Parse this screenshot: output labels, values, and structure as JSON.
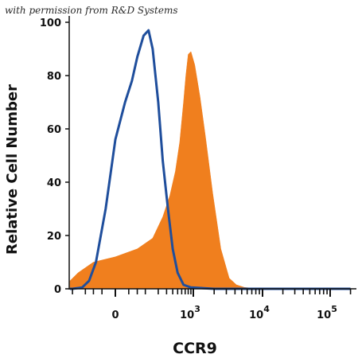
{
  "watermark": "with permission from R&D Systems",
  "chart_data": {
    "type": "area",
    "xlabel": "CCR9",
    "ylabel": "Relative Cell Number",
    "x_scale": "biexponential (logicle)",
    "ylim": [
      0,
      100
    ],
    "y_ticks": [
      "0",
      "20",
      "40",
      "60",
      "80",
      "100"
    ],
    "x_ticks": [
      {
        "base": "0",
        "exp": ""
      },
      {
        "base": "10",
        "exp": "3"
      },
      {
        "base": "10",
        "exp": "4"
      },
      {
        "base": "10",
        "exp": "5"
      }
    ],
    "x_ticks_numeric": [
      0,
      1000,
      10000,
      100000
    ],
    "grid": false,
    "legend": "none",
    "series": [
      {
        "style": "filled",
        "color": "#F07F1E",
        "x": [
          -320,
          -250,
          -150,
          -60,
          0,
          60,
          150,
          250,
          350,
          450,
          550,
          650,
          720,
          800,
          900,
          1050,
          1250,
          1500,
          1900,
          2500,
          3300,
          4200,
          5500,
          7500,
          10000,
          20000,
          50000,
          100000,
          200000
        ],
        "y": [
          2,
          3,
          6,
          10,
          12,
          15,
          19,
          27,
          35,
          44,
          55,
          70,
          80,
          88,
          89,
          84,
          72,
          57,
          36,
          15,
          4,
          1.5,
          0.5,
          0.2,
          0,
          0,
          0,
          0,
          0
        ]
      },
      {
        "style": "line",
        "color": "#1F4E9C",
        "x": [
          -320,
          -200,
          -120,
          -80,
          -50,
          -20,
          0,
          20,
          40,
          60,
          90,
          120,
          150,
          200,
          250,
          320,
          400,
          500,
          650,
          900,
          2000,
          10000,
          100000,
          200000
        ],
        "y": [
          0,
          0,
          0.5,
          3,
          10,
          30,
          56,
          70,
          78,
          87,
          95,
          97,
          90,
          70,
          48,
          30,
          15,
          6,
          1.5,
          0.5,
          0,
          0,
          0,
          0
        ]
      }
    ]
  }
}
